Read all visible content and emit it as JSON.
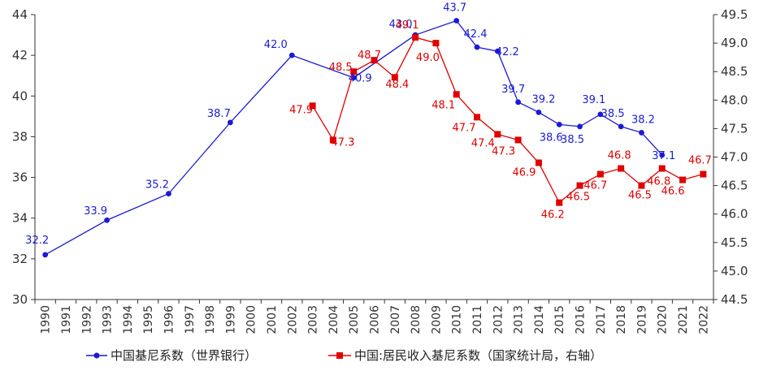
{
  "chart_data": {
    "type": "line",
    "title": "",
    "xlabel": "",
    "ylabel": "",
    "x": [
      "1990",
      "1991",
      "1992",
      "1993",
      "1994",
      "1995",
      "1996",
      "1997",
      "1998",
      "1999",
      "2000",
      "2001",
      "2002",
      "2003",
      "2004",
      "2005",
      "2006",
      "2007",
      "2008",
      "2009",
      "2010",
      "2011",
      "2012",
      "2013",
      "2014",
      "2015",
      "2016",
      "2017",
      "2018",
      "2019",
      "2020",
      "2021",
      "2022"
    ],
    "left_axis": {
      "ylim": [
        30,
        44
      ],
      "ticks": [
        "30",
        "32",
        "34",
        "36",
        "38",
        "40",
        "42",
        "44"
      ]
    },
    "right_axis": {
      "ylim": [
        44.5,
        49.5
      ],
      "ticks": [
        "44.5",
        "45.0",
        "45.5",
        "46.0",
        "46.5",
        "47.0",
        "47.5",
        "48.0",
        "48.5",
        "49.0",
        "49.5"
      ]
    },
    "series": [
      {
        "name": "中国基尼系数（世界银行）",
        "axis": "left",
        "color": "#1a1ad6",
        "marker": "circle",
        "points": [
          {
            "x": "1990",
            "y": 32.2,
            "label": "32.2"
          },
          {
            "x": "1993",
            "y": 33.9,
            "label": "33.9"
          },
          {
            "x": "1996",
            "y": 35.2,
            "label": "35.2"
          },
          {
            "x": "1999",
            "y": 38.7,
            "label": "38.7"
          },
          {
            "x": "2002",
            "y": 42.0,
            "label": "42.0"
          },
          {
            "x": "2005",
            "y": 40.9,
            "label": "40.9"
          },
          {
            "x": "2008",
            "y": 43.0,
            "label": "43.0"
          },
          {
            "x": "2010",
            "y": 43.7,
            "label": "43.7"
          },
          {
            "x": "2011",
            "y": 42.4,
            "label": "42.4"
          },
          {
            "x": "2012",
            "y": 42.2,
            "label": "42.2"
          },
          {
            "x": "2013",
            "y": 39.7,
            "label": "39.7"
          },
          {
            "x": "2014",
            "y": 39.2,
            "label": "39.2"
          },
          {
            "x": "2015",
            "y": 38.6,
            "label": "38.6"
          },
          {
            "x": "2016",
            "y": 38.5,
            "label": "38.5"
          },
          {
            "x": "2017",
            "y": 39.1,
            "label": "39.1"
          },
          {
            "x": "2018",
            "y": 38.5,
            "label": "38.5"
          },
          {
            "x": "2019",
            "y": 38.2,
            "label": "38.2"
          },
          {
            "x": "2020",
            "y": 37.1,
            "label": "37.1"
          }
        ]
      },
      {
        "name": "中国:居民收入基尼系数（国家统计局，右轴）",
        "axis": "right",
        "color": "#e00000",
        "marker": "square",
        "points": [
          {
            "x": "2003",
            "y": 47.9,
            "label": "47.9"
          },
          {
            "x": "2004",
            "y": 47.3,
            "label": "47.3"
          },
          {
            "x": "2005",
            "y": 48.5,
            "label": "48.5"
          },
          {
            "x": "2006",
            "y": 48.7,
            "label": "48.7"
          },
          {
            "x": "2007",
            "y": 48.4,
            "label": "48.4"
          },
          {
            "x": "2008",
            "y": 49.1,
            "label": "49.1"
          },
          {
            "x": "2009",
            "y": 49.0,
            "label": "49.0"
          },
          {
            "x": "2010",
            "y": 48.1,
            "label": "48.1"
          },
          {
            "x": "2011",
            "y": 47.7,
            "label": "47.7"
          },
          {
            "x": "2012",
            "y": 47.4,
            "label": "47.4"
          },
          {
            "x": "2013",
            "y": 47.3,
            "label": "47.3"
          },
          {
            "x": "2014",
            "y": 46.9,
            "label": "46.9"
          },
          {
            "x": "2015",
            "y": 46.2,
            "label": "46.2"
          },
          {
            "x": "2016",
            "y": 46.5,
            "label": "46.5"
          },
          {
            "x": "2017",
            "y": 46.7,
            "label": "46.7"
          },
          {
            "x": "2018",
            "y": 46.8,
            "label": "46.8"
          },
          {
            "x": "2019",
            "y": 46.5,
            "label": "46.5"
          },
          {
            "x": "2020",
            "y": 46.8,
            "label": "46.8"
          },
          {
            "x": "2021",
            "y": 46.6,
            "label": "46.6"
          },
          {
            "x": "2022",
            "y": 46.7,
            "label": "46.7"
          }
        ]
      }
    ],
    "legend_position": "bottom"
  }
}
